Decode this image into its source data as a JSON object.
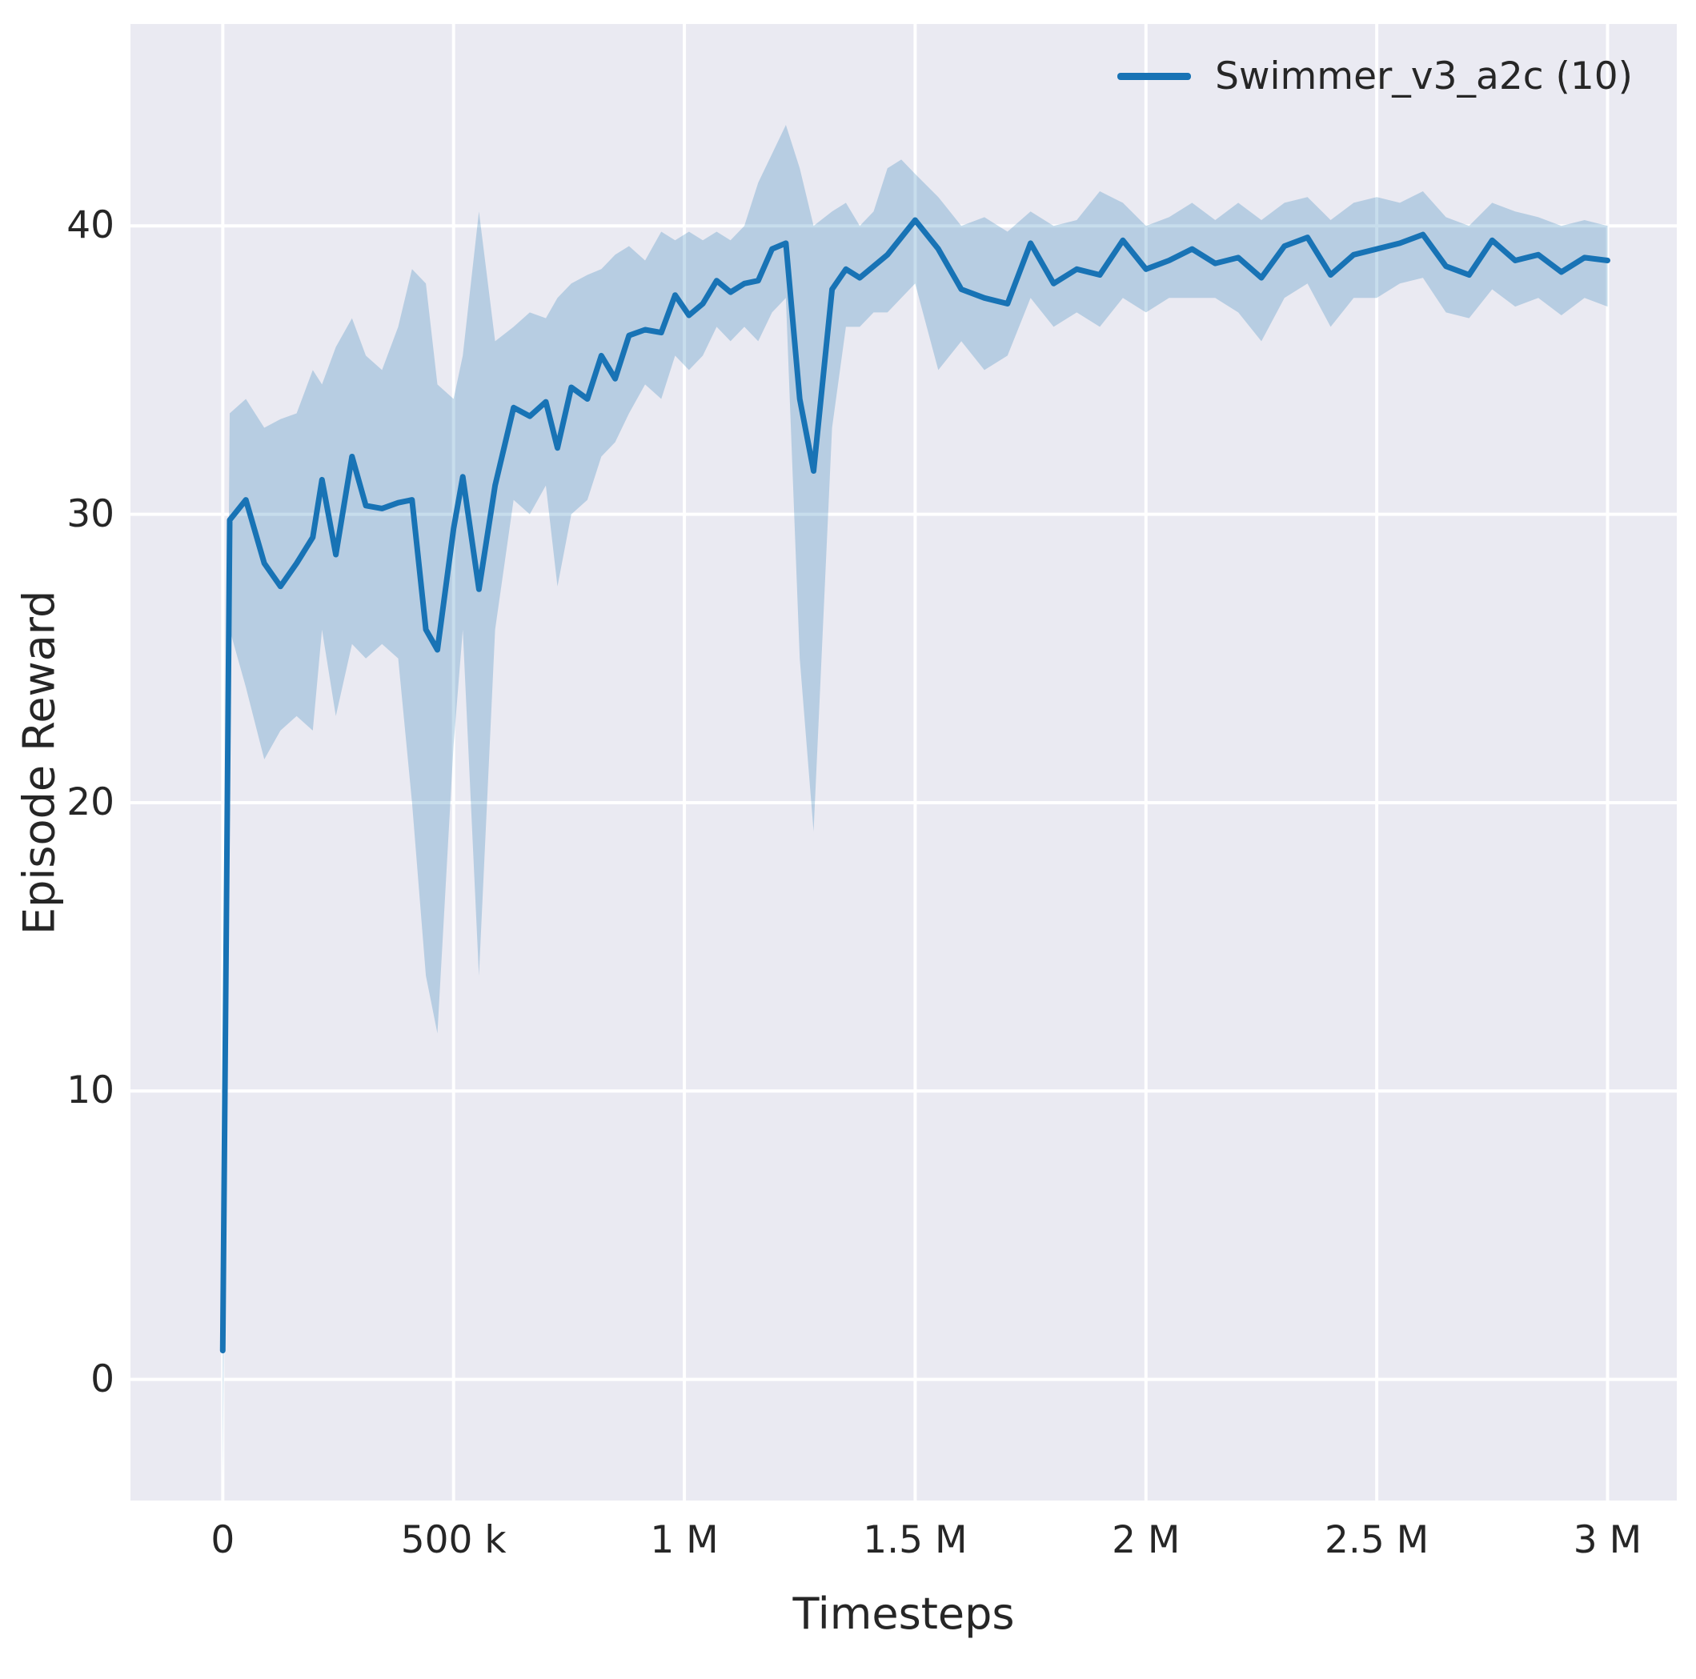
{
  "chart_data": {
    "type": "line",
    "title": "",
    "xlabel": "Timesteps",
    "ylabel": "Episode Reward",
    "xlim": [
      -200000,
      3150000
    ],
    "ylim": [
      -4.2,
      47.0
    ],
    "grid": true,
    "plot_background": "#eaeaf2",
    "gridline_color": "#ffffff",
    "x_ticks": {
      "values": [
        0,
        500000,
        1000000,
        1500000,
        2000000,
        2500000,
        3000000
      ],
      "labels": [
        "0",
        "500 k",
        "1 M",
        "1.5 M",
        "2 M",
        "2.5 M",
        "3 M"
      ]
    },
    "y_ticks": {
      "values": [
        0,
        10,
        20,
        30,
        40
      ],
      "labels": [
        "0",
        "10",
        "20",
        "30",
        "40"
      ]
    },
    "legend_position": "upper right",
    "legend": [
      {
        "label": "Swimmer_v3_a2c (10)",
        "color": "#1873b5"
      }
    ],
    "series": [
      {
        "name": "Swimmer_v3_a2c (10)",
        "color": "#1873b5",
        "band_color": "#1f77b4",
        "band_opacity": 0.25,
        "line_width": 7,
        "x": [
          0,
          15000,
          50000,
          90000,
          125000,
          160000,
          195000,
          215000,
          245000,
          280000,
          310000,
          345000,
          380000,
          410000,
          440000,
          465000,
          500000,
          520000,
          555000,
          590000,
          630000,
          665000,
          700000,
          725000,
          755000,
          790000,
          820000,
          850000,
          880000,
          915000,
          950000,
          980000,
          1010000,
          1040000,
          1070000,
          1100000,
          1130000,
          1160000,
          1190000,
          1220000,
          1250000,
          1280000,
          1320000,
          1350000,
          1380000,
          1410000,
          1440000,
          1470000,
          1500000,
          1550000,
          1600000,
          1650000,
          1700000,
          1750000,
          1800000,
          1850000,
          1900000,
          1950000,
          2000000,
          2050000,
          2100000,
          2150000,
          2200000,
          2250000,
          2300000,
          2350000,
          2400000,
          2450000,
          2500000,
          2550000,
          2600000,
          2650000,
          2700000,
          2750000,
          2800000,
          2850000,
          2900000,
          2950000,
          3000000
        ],
        "mean": [
          1.0,
          29.8,
          30.5,
          28.3,
          27.5,
          28.3,
          29.2,
          31.2,
          28.6,
          32.0,
          30.3,
          30.2,
          30.4,
          30.5,
          26.0,
          25.3,
          29.5,
          31.3,
          27.4,
          31.0,
          33.7,
          33.4,
          33.9,
          32.3,
          34.4,
          34.0,
          35.5,
          34.7,
          36.2,
          36.4,
          36.3,
          37.6,
          36.9,
          37.3,
          38.1,
          37.7,
          38.0,
          38.1,
          39.2,
          39.4,
          34.0,
          31.5,
          37.8,
          38.5,
          38.2,
          38.6,
          39.0,
          39.6,
          40.2,
          39.2,
          37.8,
          37.5,
          37.3,
          39.4,
          38.0,
          38.5,
          38.3,
          39.5,
          38.5,
          38.8,
          39.2,
          38.7,
          38.9,
          38.2,
          39.3,
          39.6,
          38.3,
          39.0,
          39.2,
          39.4,
          39.7,
          38.6,
          38.3,
          39.5,
          38.8,
          39.0,
          38.4,
          38.9,
          38.8
        ],
        "lower": [
          -3.5,
          26.0,
          24.0,
          21.5,
          22.5,
          23.0,
          22.5,
          26.0,
          23.0,
          25.5,
          25.0,
          25.5,
          25.0,
          20.0,
          14.0,
          12.0,
          22.0,
          26.0,
          14.0,
          26.0,
          30.5,
          30.0,
          31.0,
          27.5,
          30.0,
          30.5,
          32.0,
          32.5,
          33.5,
          34.5,
          34.0,
          35.5,
          35.0,
          35.5,
          36.5,
          36.0,
          36.5,
          36.0,
          37.0,
          37.5,
          25.0,
          19.0,
          33.0,
          36.5,
          36.5,
          37.0,
          37.0,
          37.5,
          38.0,
          35.0,
          36.0,
          35.0,
          35.5,
          37.5,
          36.5,
          37.0,
          36.5,
          37.5,
          37.0,
          37.5,
          37.5,
          37.5,
          37.0,
          36.0,
          37.5,
          38.0,
          36.5,
          37.5,
          37.5,
          38.0,
          38.2,
          37.0,
          36.8,
          37.8,
          37.2,
          37.5,
          36.9,
          37.5,
          37.2
        ],
        "upper": [
          2.0,
          33.5,
          34.0,
          33.0,
          33.3,
          33.5,
          35.0,
          34.5,
          35.8,
          36.8,
          35.5,
          35.0,
          36.5,
          38.5,
          38.0,
          34.5,
          34.0,
          35.5,
          40.5,
          36.0,
          36.5,
          37.0,
          36.8,
          37.5,
          38.0,
          38.3,
          38.5,
          39.0,
          39.3,
          38.8,
          39.8,
          39.5,
          39.8,
          39.5,
          39.8,
          39.5,
          40.0,
          41.5,
          42.5,
          43.5,
          42.0,
          40.0,
          40.5,
          40.8,
          40.0,
          40.5,
          42.0,
          42.3,
          41.8,
          41.0,
          40.0,
          40.3,
          39.8,
          40.5,
          40.0,
          40.2,
          41.2,
          40.8,
          40.0,
          40.3,
          40.8,
          40.2,
          40.8,
          40.2,
          40.8,
          41.0,
          40.2,
          40.8,
          41.0,
          40.8,
          41.2,
          40.3,
          40.0,
          40.8,
          40.5,
          40.3,
          40.0,
          40.2,
          40.0
        ]
      }
    ]
  }
}
